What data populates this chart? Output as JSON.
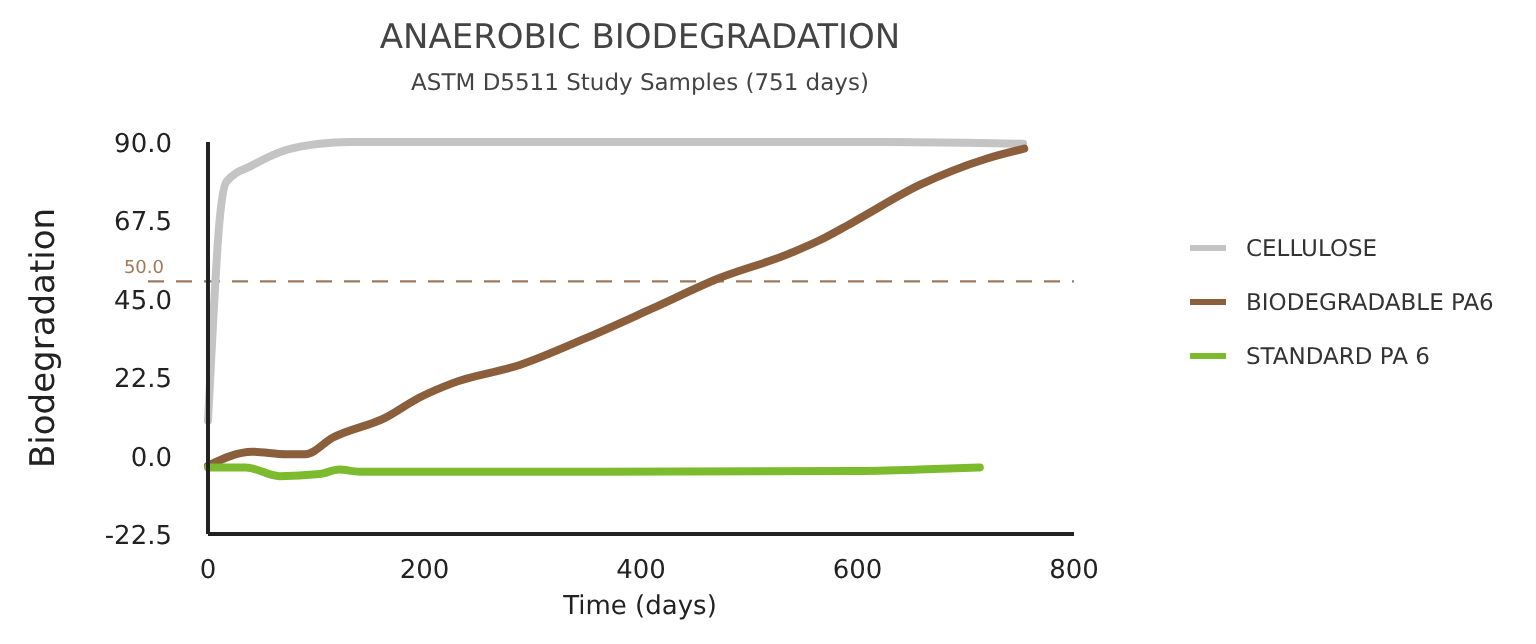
{
  "chart_data": {
    "type": "line",
    "title": "ANAEROBIC BIODEGRADATION",
    "subtitle": "ASTM D5511 Study Samples (751 days)",
    "xlabel": "Time (days)",
    "ylabel": "Biodegradation",
    "xlim": [
      0,
      800
    ],
    "xticks": [
      0,
      200,
      400,
      600,
      800
    ],
    "ylim": [
      -22.5,
      90
    ],
    "yticks": [
      {
        "value": -22.5,
        "label": "-22.5"
      },
      {
        "value": 0,
        "label": "0.0"
      },
      {
        "value": 22.5,
        "label": "22.5"
      },
      {
        "value": 45,
        "label": "45.0"
      },
      {
        "value": 67.5,
        "label": "67.5"
      },
      {
        "value": 90,
        "label": "90.0"
      }
    ],
    "grid": false,
    "legend": "right",
    "line_style": "solid",
    "ref_lines": [
      {
        "axis": "y",
        "value": 50,
        "label": "50.0",
        "color": "#a0785a",
        "line_style": "dashed"
      }
    ],
    "series": [
      {
        "name": "CELLULOSE",
        "color": "#c4c4c4",
        "x": [
          0,
          5,
          10,
          17,
          41,
          72,
          103,
          130,
          200,
          400,
          600,
          700,
          753
        ],
        "values": [
          10,
          40,
          65,
          78.6,
          83.3,
          87.7,
          89.5,
          90,
          90,
          90,
          90,
          89.8,
          89.5
        ]
      },
      {
        "name": "BIODEGRADABLE PA6",
        "color": "#8b5e3c",
        "x": [
          0,
          41,
          72,
          90,
          115,
          164,
          195,
          226,
          288,
          349,
          411,
          472,
          534,
          565,
          596,
          657,
          719,
          754
        ],
        "values": [
          -2.9,
          1.1,
          0.4,
          0.4,
          5.1,
          10.9,
          16.6,
          20.8,
          26,
          33.7,
          42.3,
          50.9,
          57.6,
          61.8,
          67,
          77.6,
          85.2,
          88.1
        ]
      },
      {
        "name": "STANDARD PA  6",
        "color": "#7dbb2e",
        "x": [
          0,
          35,
          66,
          103,
          121,
          140,
          349,
          596,
          657,
          713
        ],
        "values": [
          -3.4,
          -3.4,
          -5.9,
          -5.3,
          -4,
          -4.6,
          -4.6,
          -4.4,
          -4,
          -3.4
        ]
      }
    ]
  }
}
